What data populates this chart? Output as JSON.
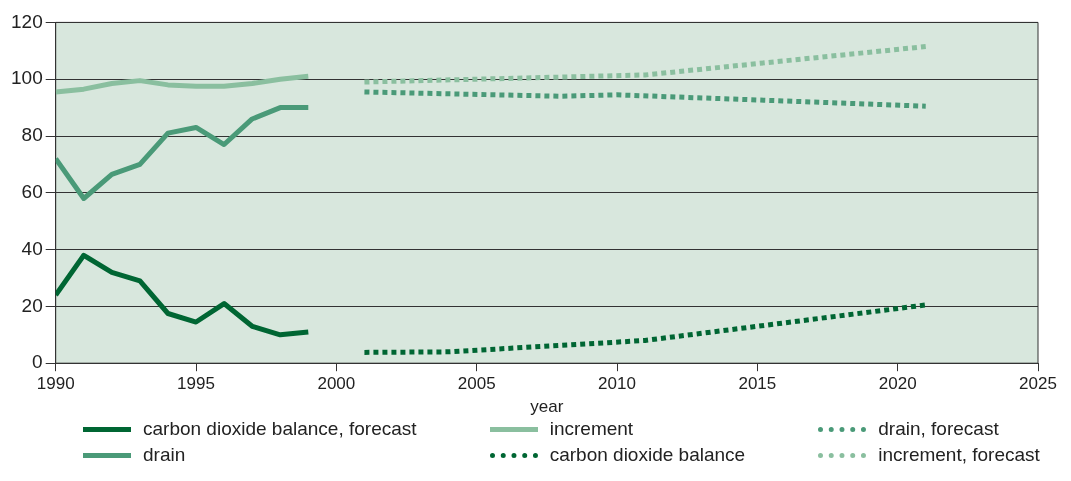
{
  "chart_data": {
    "type": "line",
    "xlabel": "year",
    "xlim": [
      1990,
      2025
    ],
    "xticks": [
      1990,
      1995,
      2000,
      2005,
      2010,
      2015,
      2020,
      2025
    ],
    "ylim": [
      0,
      120
    ],
    "yticks": [
      0,
      20,
      40,
      60,
      80,
      100,
      120
    ],
    "grid": "y",
    "legend": "bottom",
    "marker": "none",
    "series": [
      {
        "name": "carbon dioxide balance, forecast",
        "color": "#006633",
        "line_style": "solid",
        "x": [
          1990,
          1991,
          1992,
          1993,
          1994,
          1995,
          1996,
          1997,
          1998,
          1999
        ],
        "values": [
          24,
          38,
          32,
          29,
          17.5,
          14.5,
          21,
          13,
          10,
          11
        ]
      },
      {
        "name": "drain",
        "color": "#4a9a78",
        "line_style": "solid",
        "x": [
          1990,
          1991,
          1992,
          1993,
          1994,
          1995,
          1996,
          1997,
          1998,
          1999
        ],
        "values": [
          72,
          58,
          66.5,
          70,
          81,
          83,
          77,
          86,
          90,
          90
        ]
      },
      {
        "name": "increment",
        "color": "#8abf9f",
        "line_style": "solid",
        "x": [
          1990,
          1991,
          1992,
          1993,
          1994,
          1995,
          1996,
          1997,
          1998,
          1999
        ],
        "values": [
          95.5,
          96.5,
          98.5,
          99.5,
          98,
          97.5,
          97.5,
          98.5,
          100,
          101
        ]
      },
      {
        "name": "carbon dioxide balance",
        "color": "#006633",
        "line_style": "dotted",
        "x": [
          2001,
          2004,
          2011,
          2021
        ],
        "values": [
          3.8,
          4,
          8,
          20.5
        ]
      },
      {
        "name": "drain, forecast",
        "color": "#4a9a78",
        "line_style": "dotted",
        "x": [
          2001,
          2008,
          2010,
          2021
        ],
        "values": [
          95.5,
          94,
          94.5,
          90.5
        ]
      },
      {
        "name": "increment, forecast",
        "color": "#8abf9f",
        "line_style": "dotted",
        "x": [
          2001,
          2011,
          2021
        ],
        "values": [
          99,
          101.5,
          111.5
        ]
      }
    ]
  }
}
